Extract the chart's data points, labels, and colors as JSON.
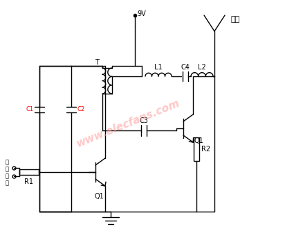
{
  "background_color": "#ffffff",
  "line_color": "#000000",
  "watermark_text": "www.elecfans.com",
  "watermark_color": "#ff9999",
  "label_9V": "9V",
  "label_antenna": "天线",
  "figsize": [
    4.12,
    3.43
  ],
  "dpi": 100
}
